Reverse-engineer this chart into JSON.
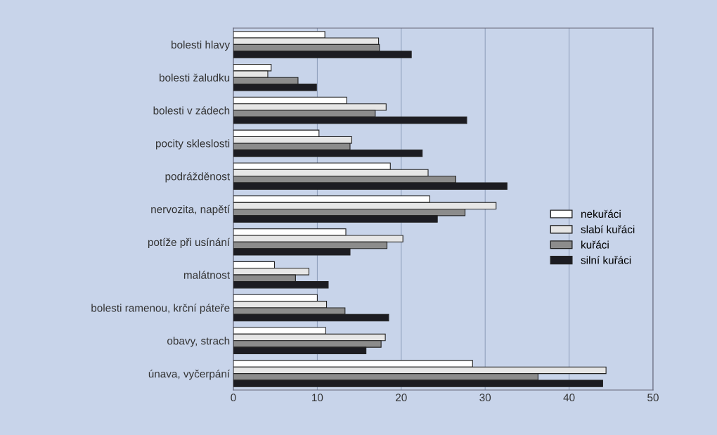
{
  "chart_data": {
    "type": "bar",
    "orientation": "horizontal",
    "categories": [
      "bolesti hlavy",
      "bolesti žaludku",
      "bolesti v zádech",
      "pocity skleslosti",
      "podrážděnost",
      "nervozita, napětí",
      "potíže při usínání",
      "malátnost",
      "bolesti ramenou, krční páteře",
      "obavy, strach",
      "únava, vyčerpání"
    ],
    "series": [
      {
        "name": "nekuřáci",
        "color": "#ffffff",
        "values": [
          10.9,
          4.5,
          13.5,
          10.2,
          18.7,
          23.4,
          13.4,
          4.9,
          10.0,
          11.0,
          28.5
        ]
      },
      {
        "name": "slabí kuřáci",
        "color": "#e6e6e6",
        "values": [
          17.3,
          4.1,
          18.2,
          14.1,
          23.2,
          31.3,
          20.2,
          9.0,
          11.1,
          18.1,
          44.4
        ]
      },
      {
        "name": "kuřáci",
        "color": "#8c8c8c",
        "values": [
          17.4,
          7.7,
          16.9,
          13.9,
          26.5,
          27.6,
          18.3,
          7.4,
          13.3,
          17.6,
          36.3
        ]
      },
      {
        "name": "silní kuřáci",
        "color": "#1c1c22",
        "values": [
          21.2,
          9.9,
          27.8,
          22.5,
          32.6,
          24.3,
          13.9,
          11.3,
          18.5,
          15.8,
          44.0
        ]
      }
    ],
    "xlim": [
      0,
      50
    ],
    "xticks": [
      0,
      10,
      20,
      30,
      40,
      50
    ],
    "grid": "x",
    "legend": "center right"
  }
}
